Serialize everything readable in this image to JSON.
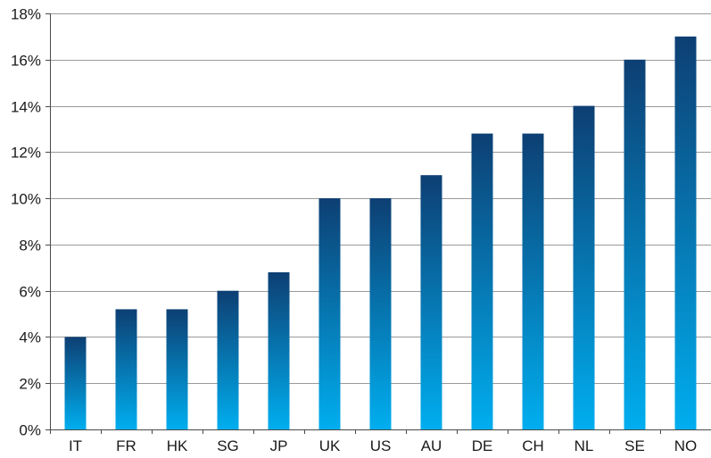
{
  "chart_data": {
    "type": "bar",
    "title": "",
    "xlabel": "",
    "ylabel": "",
    "categories": [
      "IT",
      "FR",
      "HK",
      "SG",
      "JP",
      "UK",
      "US",
      "AU",
      "DE",
      "CH",
      "NL",
      "SE",
      "NO"
    ],
    "values": [
      4.0,
      5.2,
      5.2,
      6.0,
      6.8,
      10.0,
      10.0,
      11.0,
      12.8,
      12.8,
      14.0,
      16.0,
      17.0
    ],
    "ylim": [
      0,
      18
    ],
    "yticks": [
      0,
      2,
      4,
      6,
      8,
      10,
      12,
      14,
      16,
      18
    ],
    "ytick_labels": [
      "0%",
      "2%",
      "4%",
      "6%",
      "8%",
      "10%",
      "12%",
      "14%",
      "16%",
      "18%"
    ],
    "grid": "horizontal",
    "legend": "none",
    "colors": {
      "bar_top": "#0d3f73",
      "bar_bottom": "#00aeef",
      "grid": "#9a9a9a",
      "axis": "#4a4a4a"
    }
  }
}
